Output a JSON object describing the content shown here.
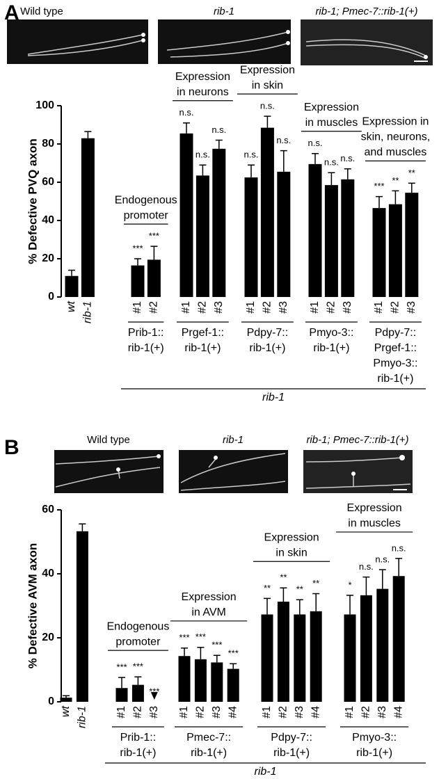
{
  "chart_data": [
    {
      "type": "bar",
      "panel": "A",
      "image_captions": [
        "Wild type",
        "rib-1",
        "rib-1; Pmec-7::rib-1(+)"
      ],
      "y_label": "% Defective PVQ axon",
      "ylim": [
        0,
        100
      ],
      "yticks": [
        0,
        20,
        40,
        60,
        80,
        100
      ],
      "color": "#000000",
      "groups": [
        {
          "categories": [
            "wt",
            "rib-1"
          ],
          "values": [
            11,
            83
          ],
          "errors": [
            3,
            3.5
          ]
        },
        {
          "header": [
            "Endogenous",
            "promoter"
          ],
          "label": [
            "Prib-1::",
            "rib-1(+)"
          ],
          "categories": [
            "#1",
            "#2"
          ],
          "values": [
            16.5,
            19.5
          ],
          "errors": [
            3.5,
            7
          ],
          "significance": [
            "***",
            "***"
          ]
        },
        {
          "header": [
            "Expression",
            "in neurons"
          ],
          "label": [
            "Prgef-1::",
            "rib-1(+)"
          ],
          "categories": [
            "#1",
            "#2",
            "#3"
          ],
          "values": [
            85.5,
            63.5,
            77.5
          ],
          "errors": [
            5.5,
            5.5,
            4.5
          ],
          "significance": [
            "n.s.",
            "n.s.",
            "n.s."
          ]
        },
        {
          "header": [
            "Expression",
            "in skin"
          ],
          "label": [
            "Pdpy-7::",
            "rib-1(+)"
          ],
          "categories": [
            "#1",
            "#2",
            "#3"
          ],
          "values": [
            62.5,
            88.5,
            65.5
          ],
          "errors": [
            6.5,
            6,
            11
          ],
          "significance": [
            "n.s.",
            "n.s.",
            "n.s."
          ]
        },
        {
          "header": [
            "Expression",
            "in muscles"
          ],
          "label": [
            "Pmyo-3::",
            "rib-1(+)"
          ],
          "categories": [
            "#1",
            "#2",
            "#3"
          ],
          "values": [
            69.5,
            58.5,
            61.5
          ],
          "errors": [
            5.5,
            6.5,
            5.5
          ],
          "significance": [
            "n.s.",
            "n.s.",
            "n.s."
          ]
        },
        {
          "header": [
            "Expression in",
            "skin, neurons,",
            "and muscles"
          ],
          "label": [
            "Pdpy-7::",
            "Prgef-1::",
            "Pmyo-3::",
            "rib-1(+)"
          ],
          "categories": [
            "#1",
            "#2",
            "#3"
          ],
          "values": [
            46.5,
            48.5,
            54.5
          ],
          "errors": [
            6,
            7,
            5
          ],
          "significance": [
            "***",
            "**",
            "**"
          ]
        }
      ],
      "bracket_label": "rib-1"
    },
    {
      "type": "bar",
      "panel": "B",
      "image_captions": [
        "Wild type",
        "rib-1",
        "rib-1; Pmec-7::rib-1(+)"
      ],
      "y_label": "% Defective AVM axon",
      "ylim": [
        0,
        60
      ],
      "yticks": [
        0,
        20,
        40,
        60
      ],
      "color": "#000000",
      "groups": [
        {
          "categories": [
            "wt",
            "rib-1"
          ],
          "values": [
            1.3,
            53.3
          ],
          "errors": [
            0.6,
            2.3
          ]
        },
        {
          "header": [
            "Endogenous",
            "promoter"
          ],
          "label": [
            "Prib-1::",
            "rib-1(+)"
          ],
          "categories": [
            "#1",
            "#2",
            "#3"
          ],
          "values": [
            4.3,
            5.3,
            0
          ],
          "errors": [
            3.3,
            2.5,
            0
          ],
          "significance": [
            "***",
            "***",
            "***"
          ]
        },
        {
          "header": [
            "Expression",
            "in AVM"
          ],
          "label": [
            "Pmec-7::",
            "rib-1(+)"
          ],
          "categories": [
            "#1",
            "#2",
            "#3",
            "#4"
          ],
          "values": [
            14.3,
            13.3,
            12.3,
            10.3
          ],
          "errors": [
            2.5,
            3.7,
            2.2,
            1.6
          ],
          "significance": [
            "***",
            "***",
            "***",
            "***"
          ]
        },
        {
          "header": [
            "Expression",
            "in skin"
          ],
          "label": [
            "Pdpy-7::",
            "rib-1(+)"
          ],
          "categories": [
            "#1",
            "#2",
            "#3",
            "#4"
          ],
          "values": [
            27.3,
            31.3,
            27.3,
            28.3
          ],
          "errors": [
            5,
            4.3,
            4.6,
            5.5
          ],
          "significance": [
            "**",
            "**",
            "**",
            "**"
          ]
        },
        {
          "header": [
            "Expression",
            "in muscles"
          ],
          "label": [
            "Pmyo-3::",
            "rib-1(+)"
          ],
          "categories": [
            "#1",
            "#2",
            "#3",
            "#4"
          ],
          "values": [
            27.3,
            33.3,
            35.3,
            39.3
          ],
          "errors": [
            6,
            5.7,
            6,
            5.5
          ],
          "significance": [
            "*",
            "n.s.",
            "n.s.",
            "n.s."
          ]
        }
      ],
      "bracket_label": "rib-1"
    }
  ]
}
